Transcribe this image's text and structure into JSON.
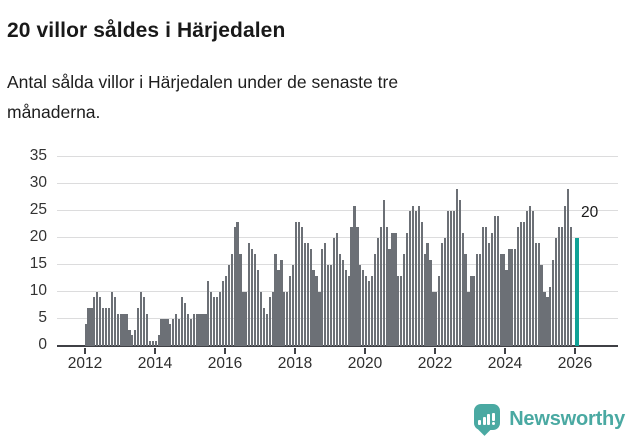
{
  "title": "20 villor såldes i Härjedalen",
  "subtitle": "Antal sålda villor i Härjedalen under de senaste tre månaderna.",
  "subtitle_lines": [
    "Antal sålda villor i Härjedalen under de senaste tre",
    "månaderna."
  ],
  "annotation": {
    "last_value_label": "20"
  },
  "footer": {
    "brand": "Newsworthy",
    "logo_icon": "newsworthy-speech-bubble-barchart-icon"
  },
  "colors": {
    "bar": "#6c7076",
    "highlight": "#10a296",
    "grid": "#dcdcdd",
    "axis": "#3f4045",
    "tick_label": "#2e2e2e",
    "brand": "#4aa9a2"
  },
  "chart_data": {
    "type": "bar",
    "title": "20 villor såldes i Härjedalen",
    "subtitle": "Antal sålda villor i Härjedalen under de senaste tre månaderna.",
    "x_unit": "månad",
    "x_start_year": 2012,
    "x_tick_labels": [
      "2012",
      "2014",
      "2016",
      "2018",
      "2020",
      "2022",
      "2024",
      "2026"
    ],
    "y_ticks": [
      0,
      5,
      10,
      15,
      20,
      25,
      30,
      35
    ],
    "ylim": [
      0,
      35
    ],
    "grid": true,
    "legend": false,
    "highlight_last_bar": true,
    "last_bar_value": 20,
    "last_bar_label": "20",
    "values_by_year": {
      "2012": [
        4,
        7,
        7,
        9,
        10,
        9,
        7,
        7,
        7,
        10,
        9,
        6
      ],
      "2013": [
        6,
        6,
        6,
        3,
        2,
        3,
        7,
        10,
        9,
        6,
        1,
        1
      ],
      "2014": [
        1,
        2,
        5,
        5,
        5,
        4,
        5,
        6,
        5,
        9,
        8,
        6
      ],
      "2015": [
        5,
        6,
        6,
        6,
        6,
        6,
        12,
        10,
        9,
        9,
        10,
        12
      ],
      "2016": [
        13,
        15,
        17,
        22,
        23,
        17,
        10,
        10,
        19,
        18,
        17,
        14
      ],
      "2017": [
        10,
        7,
        6,
        9,
        10,
        17,
        14,
        16,
        10,
        10,
        13,
        15
      ],
      "2018": [
        23,
        23,
        22,
        19,
        19,
        18,
        14,
        13,
        10,
        18,
        19,
        15
      ],
      "2019": [
        15,
        20,
        21,
        17,
        16,
        14,
        13,
        22,
        26,
        22,
        15,
        14
      ],
      "2020": [
        13,
        12,
        13,
        17,
        20,
        22,
        27,
        22,
        18,
        21,
        21,
        13
      ],
      "2021": [
        13,
        17,
        21,
        25,
        26,
        25,
        26,
        23,
        17,
        19,
        16,
        10
      ],
      "2022": [
        10,
        13,
        19,
        20,
        25,
        25,
        25,
        29,
        27,
        21,
        17,
        10
      ],
      "2023": [
        13,
        13,
        17,
        17,
        22,
        22,
        19,
        21,
        24,
        24,
        17,
        17
      ],
      "2024": [
        14,
        18,
        18,
        18,
        22,
        23,
        23,
        25,
        26,
        25,
        19,
        19
      ],
      "2025": [
        15,
        10,
        9,
        11,
        16,
        20,
        22,
        22,
        26,
        29,
        22
      ],
      "2026": [
        20
      ]
    }
  }
}
